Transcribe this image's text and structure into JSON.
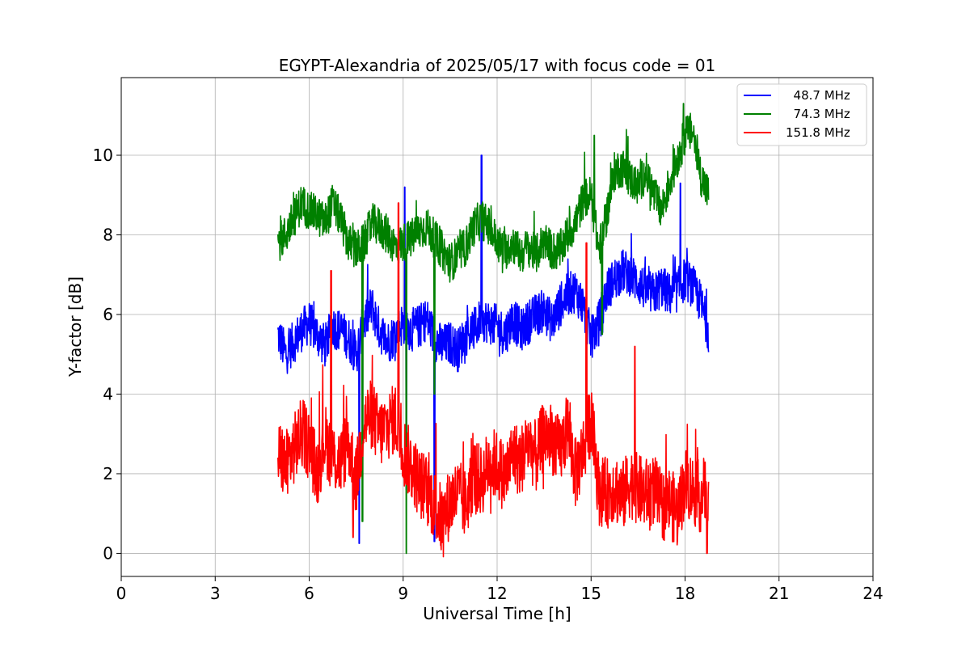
{
  "chart_data": {
    "type": "line",
    "title": "EGYPT-Alexandria of 2025/05/17 with focus code = 01",
    "xlabel": "Universal Time [h]",
    "ylabel": "Y-factor [dB]",
    "xlim": [
      0,
      24
    ],
    "ylim": [
      -0.58,
      11.95
    ],
    "xticks": [
      0,
      3,
      6,
      9,
      12,
      15,
      18,
      21,
      24
    ],
    "xtick_labels": [
      "0",
      "3",
      "6",
      "9",
      "12",
      "15",
      "18",
      "21",
      "24"
    ],
    "yticks": [
      0,
      2,
      4,
      6,
      8,
      10
    ],
    "ytick_labels": [
      "0",
      "2",
      "4",
      "6",
      "8",
      "10"
    ],
    "grid": true,
    "legend_position": "top-right",
    "series": [
      {
        "name": "  48.7 MHz",
        "color": "#0000ff",
        "x": [
          5.0,
          5.25,
          5.5,
          5.75,
          6.0,
          6.25,
          6.5,
          6.75,
          7.0,
          7.25,
          7.5,
          7.75,
          8.0,
          8.25,
          8.5,
          8.75,
          9.0,
          9.25,
          9.5,
          9.75,
          10.0,
          10.25,
          10.5,
          10.75,
          11.0,
          11.25,
          11.5,
          11.75,
          12.0,
          12.25,
          12.5,
          12.75,
          13.0,
          13.25,
          13.5,
          13.75,
          14.0,
          14.25,
          14.5,
          14.75,
          15.0,
          15.25,
          15.5,
          15.75,
          16.0,
          16.25,
          16.5,
          16.75,
          17.0,
          17.25,
          17.5,
          17.75,
          18.0,
          18.25,
          18.5,
          18.75
        ],
        "y": [
          5.5,
          5.0,
          5.3,
          5.6,
          5.8,
          5.5,
          5.2,
          5.7,
          5.6,
          5.4,
          5.0,
          5.8,
          6.2,
          5.6,
          5.3,
          5.5,
          5.8,
          5.6,
          5.7,
          5.9,
          5.4,
          5.2,
          5.3,
          5.1,
          5.5,
          5.6,
          5.9,
          5.8,
          5.7,
          5.5,
          5.9,
          5.6,
          5.8,
          6.0,
          6.1,
          5.8,
          6.2,
          6.5,
          6.6,
          6.2,
          5.4,
          5.8,
          6.6,
          6.9,
          7.1,
          7.0,
          6.8,
          6.6,
          6.5,
          6.7,
          6.5,
          6.6,
          6.9,
          6.7,
          6.3,
          5.6
        ],
        "min_dips": [
          [
            7.6,
            0.25
          ],
          [
            10.0,
            0.3
          ],
          [
            9.1,
            1.6
          ]
        ],
        "max_spikes": [
          [
            11.5,
            10.0
          ],
          [
            9.05,
            9.2
          ],
          [
            17.85,
            9.3
          ]
        ]
      },
      {
        "name": "  74.3 MHz",
        "color": "#008000",
        "x": [
          5.0,
          5.25,
          5.5,
          5.75,
          6.0,
          6.25,
          6.5,
          6.75,
          7.0,
          7.25,
          7.5,
          7.75,
          8.0,
          8.25,
          8.5,
          8.75,
          9.0,
          9.25,
          9.5,
          9.75,
          10.0,
          10.25,
          10.5,
          10.75,
          11.0,
          11.25,
          11.5,
          11.75,
          12.0,
          12.25,
          12.5,
          12.75,
          13.0,
          13.25,
          13.5,
          13.75,
          14.0,
          14.25,
          14.5,
          14.75,
          15.0,
          15.25,
          15.5,
          15.75,
          16.0,
          16.25,
          16.5,
          16.75,
          17.0,
          17.25,
          17.5,
          17.75,
          18.0,
          18.25,
          18.5,
          18.75
        ],
        "y": [
          7.8,
          8.0,
          8.4,
          8.8,
          8.6,
          8.5,
          8.3,
          8.8,
          8.4,
          7.8,
          7.6,
          7.8,
          8.3,
          8.2,
          8.0,
          7.7,
          7.8,
          7.9,
          8.1,
          8.2,
          7.9,
          7.6,
          7.3,
          7.5,
          7.7,
          8.2,
          8.4,
          8.2,
          7.8,
          7.6,
          7.8,
          7.5,
          7.7,
          7.5,
          7.9,
          7.6,
          7.6,
          8.0,
          8.3,
          8.9,
          9.0,
          7.6,
          8.5,
          9.6,
          9.7,
          9.4,
          9.2,
          9.6,
          9.0,
          8.6,
          9.3,
          9.9,
          10.5,
          10.6,
          9.5,
          9.0
        ],
        "min_dips": [
          [
            9.1,
            0.0
          ],
          [
            7.7,
            0.8
          ],
          [
            10.0,
            4.0
          ],
          [
            15.35,
            5.5
          ]
        ],
        "max_spikes": [
          [
            17.95,
            11.3
          ],
          [
            15.1,
            10.5
          ]
        ]
      },
      {
        "name": "151.8 MHz",
        "color": "#ff0000",
        "x": [
          5.0,
          5.25,
          5.5,
          5.75,
          6.0,
          6.25,
          6.5,
          6.75,
          7.0,
          7.25,
          7.5,
          7.75,
          8.0,
          8.25,
          8.5,
          8.75,
          9.0,
          9.25,
          9.5,
          9.75,
          10.0,
          10.25,
          10.5,
          10.75,
          11.0,
          11.25,
          11.5,
          11.75,
          12.0,
          12.25,
          12.5,
          12.75,
          13.0,
          13.25,
          13.5,
          13.75,
          14.0,
          14.25,
          14.5,
          14.75,
          15.0,
          15.25,
          15.5,
          15.75,
          16.0,
          16.25,
          16.5,
          16.75,
          17.0,
          17.25,
          17.5,
          17.75,
          18.0,
          18.25,
          18.5,
          18.75
        ],
        "y": [
          2.5,
          2.2,
          2.6,
          3.0,
          2.8,
          2.0,
          2.9,
          2.4,
          2.3,
          2.8,
          1.8,
          3.3,
          3.5,
          3.0,
          3.2,
          3.4,
          2.6,
          2.2,
          1.8,
          1.6,
          1.2,
          0.8,
          1.3,
          1.5,
          1.2,
          2.0,
          1.8,
          2.3,
          2.2,
          1.9,
          2.5,
          2.3,
          2.8,
          2.4,
          3.0,
          2.9,
          2.5,
          3.2,
          2.0,
          2.6,
          3.4,
          1.6,
          1.5,
          1.7,
          1.4,
          1.8,
          1.6,
          1.5,
          1.6,
          1.2,
          1.3,
          1.0,
          1.8,
          1.6,
          1.4,
          1.7
        ],
        "min_dips": [
          [
            18.7,
            0.0
          ],
          [
            10.2,
            0.2
          ],
          [
            7.4,
            0.4
          ]
        ],
        "max_spikes": [
          [
            8.85,
            8.8
          ],
          [
            14.85,
            7.8
          ],
          [
            6.7,
            7.1
          ],
          [
            16.4,
            5.2
          ]
        ]
      }
    ]
  }
}
